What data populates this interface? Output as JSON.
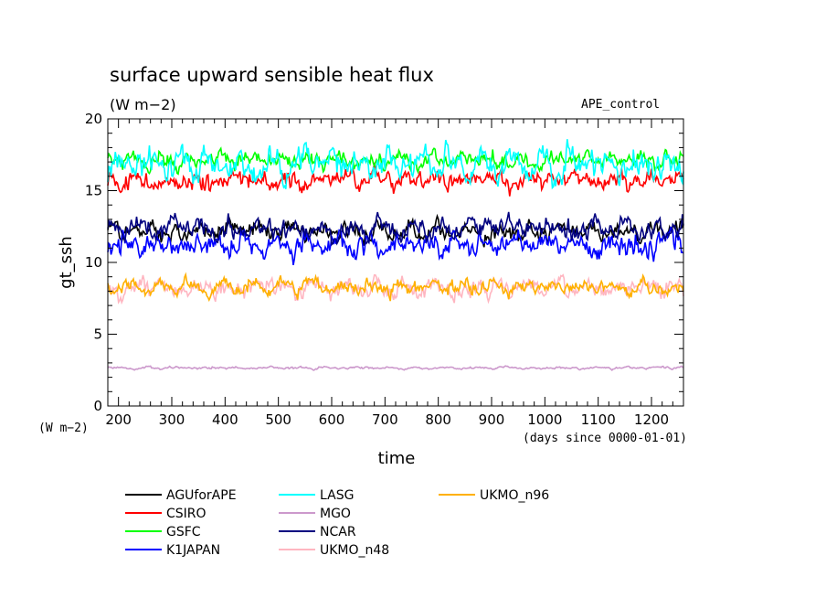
{
  "chart_data": {
    "type": "line",
    "title": "surface upward sensible heat flux",
    "units": "(W m−2)",
    "experiment": "APE_control",
    "ylabel": "gt_ssh",
    "xlabel": "time",
    "x_units_note": "(days since 0000-01-01)",
    "y_units_note": "(W m−2)",
    "xlim": [
      180,
      1260
    ],
    "ylim": [
      0,
      20
    ],
    "x_ticks": [
      200,
      300,
      400,
      500,
      600,
      700,
      800,
      900,
      1000,
      1100,
      1200
    ],
    "y_ticks": [
      0,
      5,
      10,
      15,
      20
    ],
    "grid": false,
    "legend_position": "bottom",
    "series": [
      {
        "name": "AGUforAPE",
        "color": "#000000",
        "mean": 12.2,
        "amp": 0.75
      },
      {
        "name": "CSIRO",
        "color": "#ff0000",
        "mean": 15.7,
        "amp": 0.8
      },
      {
        "name": "GSFC",
        "color": "#00ff00",
        "mean": 17.1,
        "amp": 0.7
      },
      {
        "name": "K1JAPAN",
        "color": "#0000ff",
        "mean": 11.2,
        "amp": 0.95
      },
      {
        "name": "LASG",
        "color": "#00ffff",
        "mean": 16.8,
        "amp": 1.2
      },
      {
        "name": "MGO",
        "color": "#cc99cc",
        "mean": 2.65,
        "amp": 0.1
      },
      {
        "name": "NCAR",
        "color": "#000080",
        "mean": 12.3,
        "amp": 0.9
      },
      {
        "name": "UKMO_n48",
        "color": "#ffb6c1",
        "mean": 8.2,
        "amp": 0.75
      },
      {
        "name": "UKMO_n96",
        "color": "#ffb000",
        "mean": 8.3,
        "amp": 0.6
      }
    ]
  }
}
